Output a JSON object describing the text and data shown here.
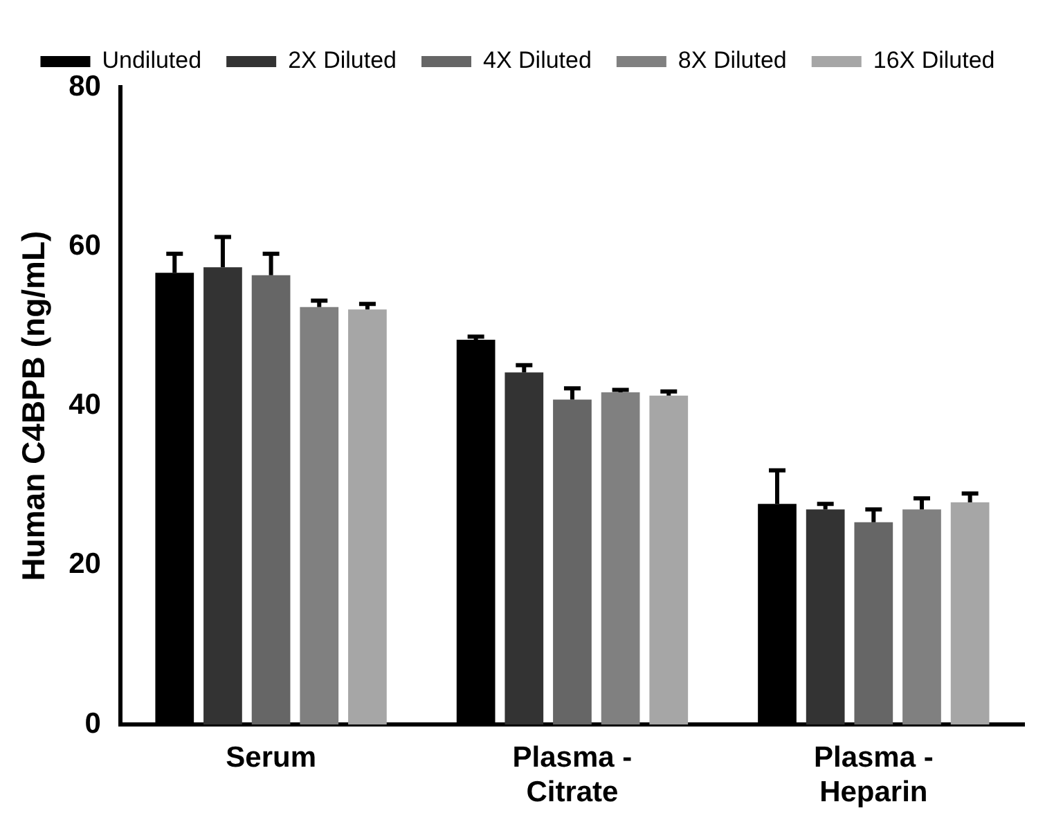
{
  "chart_data": {
    "type": "bar",
    "ylabel": "Human C4BPB (ng/mL)",
    "categories": [
      "Serum",
      "Plasma - Citrate",
      "Plasma - Heparin"
    ],
    "ylim": [
      0,
      80
    ],
    "yticks": [
      0,
      20,
      40,
      60,
      80
    ],
    "grid": false,
    "legend": "top",
    "series": [
      {
        "name": "Undiluted",
        "color": "#000000",
        "values": [
          56.7,
          48.3,
          27.7
        ],
        "errors": [
          [
            56.7,
            59.1
          ],
          [
            48.3,
            48.7
          ],
          [
            27.7,
            31.9
          ]
        ]
      },
      {
        "name": "2X Diluted",
        "color": "#333333",
        "values": [
          57.4,
          44.2,
          27.0
        ],
        "errors": [
          [
            57.4,
            61.2
          ],
          [
            44.2,
            45.1
          ],
          [
            27.0,
            27.7
          ]
        ]
      },
      {
        "name": "4X Diluted",
        "color": "#666666",
        "values": [
          56.4,
          40.8,
          25.4
        ],
        "errors": [
          [
            56.4,
            59.1
          ],
          [
            40.8,
            42.2
          ],
          [
            25.4,
            27.0
          ]
        ]
      },
      {
        "name": "8X Diluted",
        "color": "#808080",
        "values": [
          52.4,
          41.7,
          27.0
        ],
        "errors": [
          [
            52.4,
            53.2
          ],
          [
            41.7,
            42.0
          ],
          [
            27.0,
            28.4
          ]
        ]
      },
      {
        "name": "16X Diluted",
        "color": "#a6a6a6",
        "values": [
          52.1,
          41.3,
          27.9
        ],
        "errors": [
          [
            52.1,
            52.8
          ],
          [
            41.3,
            41.8
          ],
          [
            27.9,
            29.0
          ]
        ]
      }
    ]
  }
}
